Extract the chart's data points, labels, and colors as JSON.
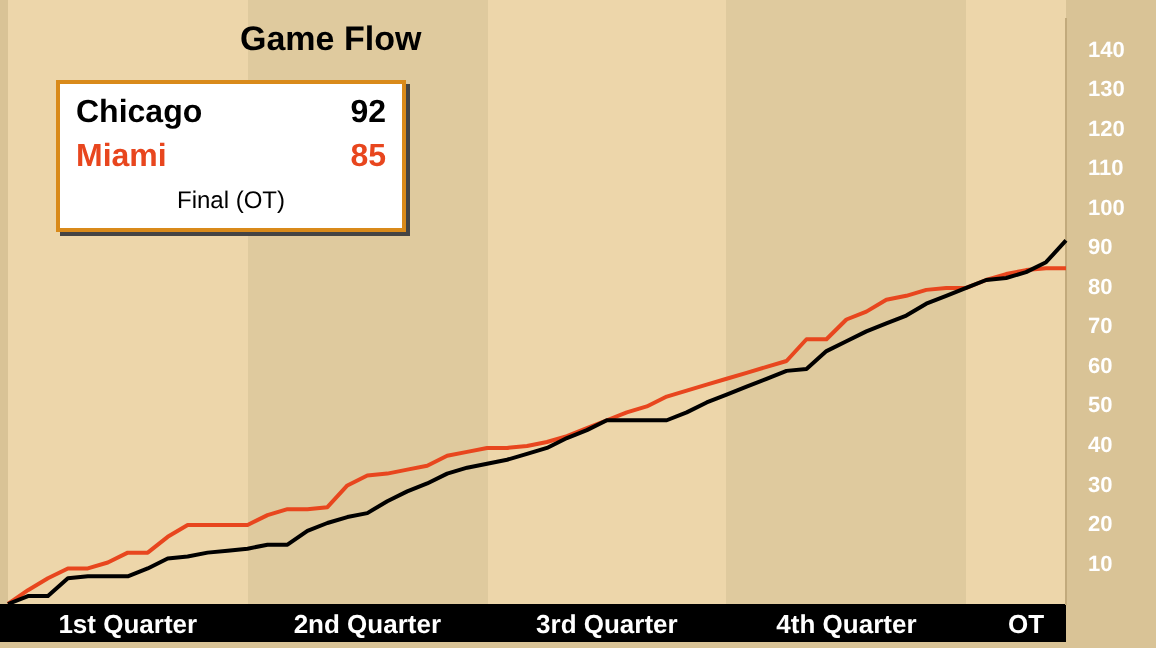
{
  "chart_data": {
    "type": "line",
    "title": "Game Flow",
    "ylim": [
      0,
      148
    ],
    "yticks": [
      10,
      20,
      30,
      40,
      50,
      60,
      70,
      80,
      90,
      100,
      110,
      120,
      130,
      140
    ],
    "marker": "none",
    "line_style": "solid",
    "categories": [
      null,
      null,
      null,
      null,
      null,
      null,
      "1st Quarter",
      null,
      null,
      null,
      null,
      null,
      null,
      null,
      null,
      null,
      null,
      null,
      "2nd Quarter",
      null,
      null,
      null,
      null,
      null,
      null,
      null,
      null,
      null,
      null,
      null,
      "3rd Quarter",
      null,
      null,
      null,
      null,
      null,
      null,
      null,
      null,
      null,
      null,
      null,
      "4th Quarter",
      null,
      null,
      null,
      null,
      null,
      null,
      null,
      null,
      "OT",
      null,
      null
    ],
    "annotations": [
      "92",
      "85",
      "Final (OT)"
    ],
    "series": [
      {
        "name": "Chicago",
        "color": "#000000",
        "values": [
          0,
          2,
          2,
          6.5,
          7,
          7,
          7,
          9,
          11.5,
          12,
          13,
          13.5,
          14,
          15,
          15,
          18.5,
          20.5,
          22,
          23,
          26,
          28.5,
          30.5,
          33,
          34.5,
          35.5,
          36.5,
          38,
          39.5,
          42,
          44,
          46.5,
          46.5,
          46.5,
          46.5,
          48.5,
          51,
          53,
          55,
          57,
          59,
          59.5,
          64,
          66.5,
          69,
          71,
          73,
          76,
          78,
          80,
          82,
          82.5,
          84,
          86.5,
          92
        ]
      },
      {
        "name": "Miami",
        "color": "#e8461e",
        "values": [
          0,
          3.5,
          6.5,
          9,
          9,
          10.5,
          13,
          13,
          17,
          20,
          20,
          20,
          20,
          22.5,
          24,
          24,
          24.5,
          30,
          32.5,
          33,
          34,
          35,
          37.5,
          38.5,
          39.5,
          39.5,
          40,
          41,
          42.5,
          44.5,
          46.5,
          48.5,
          50,
          52.5,
          54,
          55.5,
          57,
          58.5,
          60,
          61.5,
          67,
          67,
          72,
          74,
          77,
          78,
          79.5,
          80,
          80,
          82,
          83.5,
          84.5,
          85,
          85
        ]
      }
    ]
  }
}
